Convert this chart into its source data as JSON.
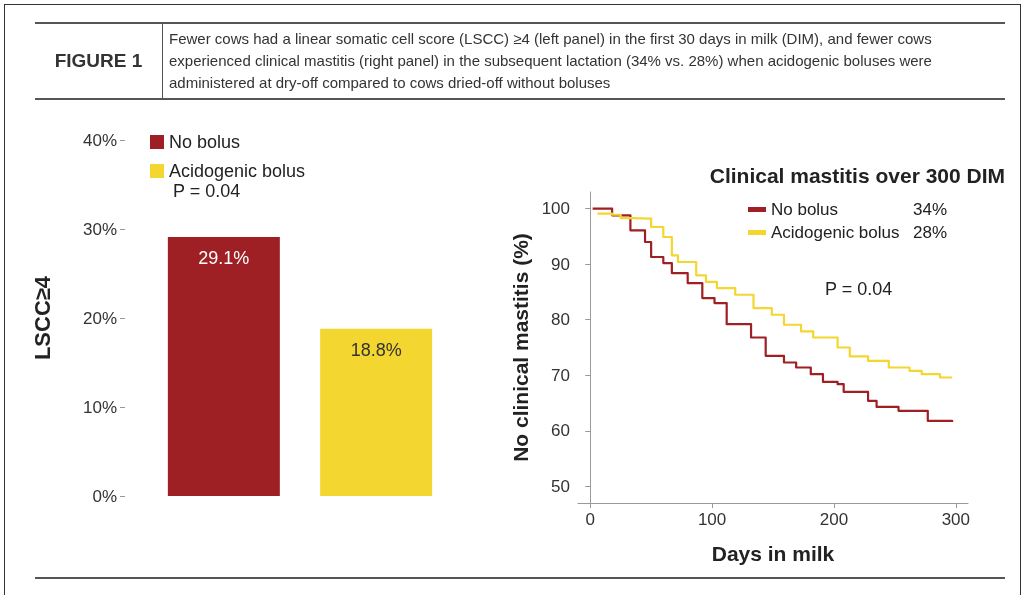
{
  "chart_data": [
    {
      "type": "bar",
      "title": "FIGURE 1",
      "subtitle": "Fewer cows had a linear somatic cell score (LSCC) ≥4 (left panel) in the first 30 days in milk (DIM), and fewer cows experienced clinical mastitis (right panel) in the subsequent lactation (34% vs. 28%) when acidogenic boluses were administered at dry-off compared to cows dried-off without boluses",
      "ylabel": "LSCC≥4",
      "categories": [
        null
      ],
      "series": [
        {
          "name": "No bolus",
          "color": "#9e1f24",
          "values": [
            29.1
          ],
          "value_labels": [
            "29.1%"
          ]
        },
        {
          "name": "Acidogenic bolus",
          "color": "#f3d630",
          "values": [
            18.8
          ],
          "value_labels": [
            "18.8%"
          ]
        }
      ],
      "ylim": [
        0,
        40
      ],
      "yticks": [
        {
          "value": 0,
          "label": "0%"
        },
        {
          "value": 10,
          "label": "10%"
        },
        {
          "value": 20,
          "label": "20%"
        },
        {
          "value": 30,
          "label": "30%"
        },
        {
          "value": 40,
          "label": "40%"
        }
      ],
      "legend": "top left",
      "grid": false,
      "annotations": [
        "P = 0.04"
      ]
    },
    {
      "type": "step",
      "title": "Clinical mastitis over 300 DIM",
      "xlabel": "Days in milk",
      "ylabel": "No clinical mastitis (%)",
      "series": [
        {
          "name": "No bolus",
          "color": "#9e1f24",
          "x": [
            2,
            18,
            33,
            45,
            50,
            60,
            67,
            80,
            92,
            102,
            112,
            132,
            144,
            159,
            169,
            181,
            191,
            203,
            208,
            228,
            235,
            253,
            277,
            297
          ],
          "values": [
            100,
            98.8,
            96.1,
            94,
            91.3,
            90.2,
            88.4,
            86.6,
            83.9,
            83,
            79.2,
            76.8,
            73.5,
            72.3,
            71.4,
            70.2,
            68.8,
            68.4,
            67,
            65.4,
            64.3,
            63.6,
            61.8,
            61.6
          ]
        },
        {
          "name": "Acidogenic bolus",
          "color": "#f3d630",
          "x": [
            6,
            18,
            25,
            35,
            50,
            60,
            67,
            72,
            87,
            95,
            104,
            119,
            134,
            149,
            159,
            173,
            183,
            203,
            213,
            228,
            245,
            262,
            272,
            287,
            297
          ],
          "values": [
            99.1,
            98.9,
            98.3,
            98.2,
            96.7,
            94.9,
            91.6,
            90.4,
            88,
            86.8,
            85.7,
            84.5,
            82.1,
            80.9,
            79.1,
            77.9,
            76.8,
            75,
            73.4,
            72.6,
            71.4,
            70.8,
            70.2,
            69.6,
            69.6
          ]
        }
      ],
      "xlim": [
        -10,
        310
      ],
      "xticks": [
        0,
        100,
        200,
        300
      ],
      "ylim": [
        47,
        103
      ],
      "yticks": [
        50,
        60,
        70,
        80,
        90,
        100
      ],
      "legend": "top right",
      "grid": false,
      "annotations": [
        "34%",
        "28%",
        "P = 0.04"
      ]
    }
  ]
}
